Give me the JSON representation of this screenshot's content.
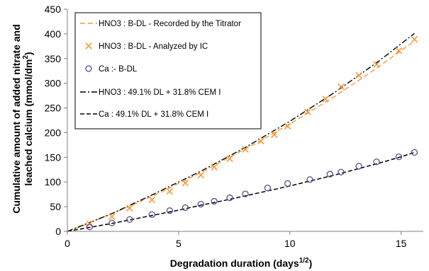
{
  "chart_data": {
    "type": "scatter",
    "xlabel": "Degradation duration (days",
    "xlabel_sup": "1/2",
    "xlabel_tail": ")",
    "ylabel_line1": "Cumulative amount of added nitrate and",
    "ylabel_line2_pre": "leached calcium (mmol/dm",
    "ylabel_line2_sup": "2",
    "ylabel_line2_post": ")",
    "xlim": [
      0,
      16
    ],
    "ylim": [
      0,
      450
    ],
    "xticks": [
      0,
      5,
      10,
      15
    ],
    "yticks": [
      0,
      50,
      100,
      150,
      200,
      250,
      300,
      350,
      400,
      450
    ],
    "grid": false,
    "legend_position": "top-left",
    "series": [
      {
        "name": "HNO3 : B-DL - Recorded by the Titrator",
        "style": "dash-orange",
        "color": "#F59A3C",
        "x": [
          0,
          0.5,
          1.0,
          1.5,
          2.0,
          2.5,
          3.0,
          3.5,
          4.0,
          4.5,
          5.0,
          5.5,
          6.0,
          6.5,
          7.0,
          7.5,
          8.0,
          8.5,
          9.0,
          9.5,
          10.0,
          10.5,
          11.0,
          11.5,
          12.0,
          12.5,
          13.0,
          13.5,
          14.0,
          14.5,
          15.0,
          15.5
        ],
        "values": [
          0,
          8,
          17,
          27,
          36,
          45,
          55,
          65,
          75,
          86,
          97,
          108,
          119,
          131,
          143,
          155,
          167,
          179,
          192,
          205,
          218,
          231,
          245,
          259,
          273,
          288,
          303,
          318,
          334,
          350,
          366,
          382
        ]
      },
      {
        "name": "HNO3 : B-DL - Analyzed by IC",
        "style": "x-marker",
        "color": "#F59A3C",
        "x": [
          1.0,
          2.0,
          2.8,
          3.8,
          4.6,
          5.3,
          6.0,
          6.6,
          7.3,
          8.0,
          8.7,
          9.3,
          9.9,
          10.8,
          11.6,
          12.3,
          13.1,
          13.9,
          14.9,
          15.6
        ],
        "values": [
          15,
          30,
          47,
          64,
          81,
          98,
          114,
          130,
          147,
          166,
          183,
          196,
          213,
          242,
          268,
          293,
          316,
          338,
          366,
          389
        ]
      },
      {
        "name": "Ca :- B-DL",
        "style": "circle-marker",
        "color": "#5B4B8A",
        "x": [
          1.0,
          2.0,
          2.8,
          3.8,
          4.6,
          5.3,
          6.0,
          6.6,
          7.3,
          8.0,
          9.0,
          9.9,
          10.9,
          11.8,
          12.3,
          13.1,
          13.9,
          14.9,
          15.6
        ],
        "values": [
          9,
          17,
          24,
          34,
          42,
          48,
          55,
          61,
          68,
          76,
          88,
          97,
          105,
          116,
          120,
          132,
          141,
          151,
          160
        ]
      },
      {
        "name": "HNO3 : 49.1% DL + 31.8% CEM I",
        "style": "dashdot-black",
        "color": "#000000",
        "x": [
          0,
          2,
          4,
          6,
          8,
          10,
          12,
          14,
          15.6
        ],
        "values": [
          0,
          36,
          78,
          122,
          170,
          223,
          281,
          345,
          401
        ]
      },
      {
        "name": "Ca : 49.1% DL + 31.8% CEM I",
        "style": "dash-black",
        "color": "#000000",
        "x": [
          0,
          1,
          2,
          3,
          4,
          5,
          6,
          7,
          8,
          9,
          10,
          11,
          12,
          13,
          14,
          15,
          15.6
        ],
        "values": [
          0,
          8,
          16,
          25,
          34,
          43,
          53,
          62,
          72,
          82,
          92,
          103,
          114,
          126,
          138,
          151,
          160
        ]
      }
    ]
  }
}
